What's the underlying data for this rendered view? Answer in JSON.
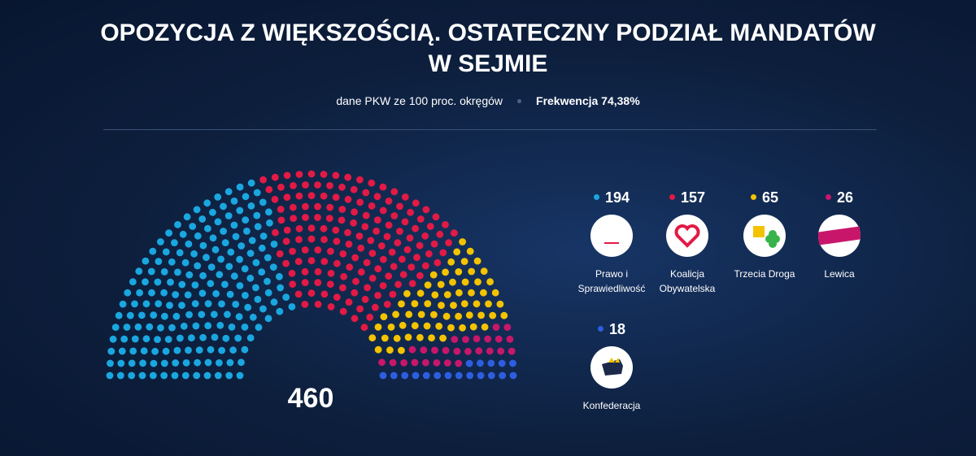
{
  "chart_data": {
    "type": "parliament",
    "title": "OPOZYCJA Z WIĘKSZOŚCIĄ. OSTATECZNY PODZIAŁ MANDATÓW W SEJMIE",
    "source": "dane PKW ze 100 proc. okręgów",
    "turnout": "Frekwencja 74,38%",
    "total": 460,
    "series": [
      {
        "name": "Prawo i Sprawiedliwość",
        "color": "#1aa7e0",
        "value": 194
      },
      {
        "name": "Koalicja Obywatelska",
        "color": "#e21a45",
        "value": 157
      },
      {
        "name": "Trzecia Droga",
        "color": "#f4c300",
        "value": 65
      },
      {
        "name": "Lewica",
        "color": "#c8176a",
        "value": 26
      },
      {
        "name": "Konfederacja",
        "color": "#2d5ee0",
        "value": 18
      }
    ]
  }
}
